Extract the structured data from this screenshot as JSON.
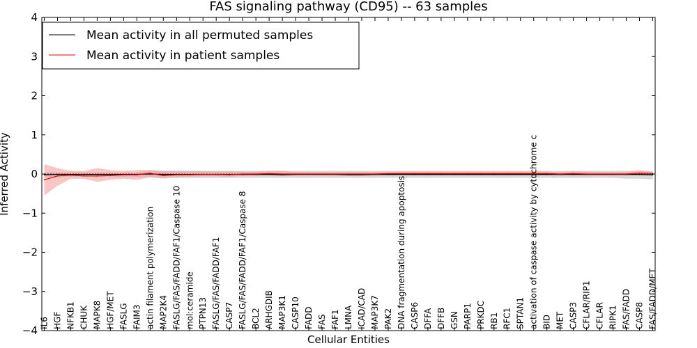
{
  "chart_data": {
    "type": "line",
    "title": "FAS signaling pathway (CD95) -- 63 samples",
    "xlabel": "Cellular Entities",
    "ylabel": "Inferred Activity",
    "ylim": [
      -4,
      4
    ],
    "yticks": [
      -4,
      -3,
      -2,
      -1,
      0,
      1,
      2,
      3,
      4
    ],
    "ytick_labels": [
      "−4",
      "−3",
      "−2",
      "−1",
      "0",
      "1",
      "2",
      "3",
      "4"
    ],
    "legend_position": "top-left",
    "categories": [
      "IL6",
      "HGF",
      "NFKB1",
      "CHUK",
      "MAPK8",
      "HGF/MET",
      "FASLG",
      "FAIM3",
      "actin filament polymerization",
      "MAP2K4",
      "FASLG/FAS/FADD/FAF1/Caspase 10",
      "mol:ceramide",
      "PTPN13",
      "FASLG/FAS/FADD/FAF1",
      "CASP7",
      "FASLG/FAS/FADD/FAF1/Caspase 8",
      "BCL2",
      "ARHGDIB",
      "MAP3K1",
      "CASP10",
      "FADD",
      "FAS",
      "FAF1",
      "LMNA",
      "ICAD/CAD",
      "MAP3K7",
      "PAK2",
      "DNA fragmentation during apoptosis",
      "CASP6",
      "DFFA",
      "DFFB",
      "GSN",
      "PARP1",
      "PRKDC",
      "RB1",
      "RFC1",
      "SPTAN1",
      "activation of caspase activity by cytochrome c",
      "BID",
      "MET",
      "CASP3",
      "CFLAR/RIP1",
      "CFLAR",
      "RIPK1",
      "FAS/FADD",
      "CASP8",
      "FAS/FADD/MET"
    ],
    "series": [
      {
        "name": "Mean activity in all permuted samples",
        "color": "#000000",
        "band_color": "#c8c8c8",
        "values": [
          -0.02,
          -0.01,
          -0.01,
          -0.01,
          -0.01,
          -0.01,
          -0.01,
          -0.01,
          0.0,
          -0.01,
          -0.01,
          -0.01,
          -0.01,
          -0.01,
          -0.01,
          -0.01,
          -0.01,
          -0.01,
          -0.02,
          -0.01,
          -0.01,
          -0.01,
          -0.01,
          -0.02,
          -0.02,
          -0.01,
          -0.01,
          -0.01,
          -0.01,
          -0.01,
          -0.01,
          -0.01,
          -0.01,
          -0.01,
          -0.01,
          -0.01,
          -0.01,
          -0.01,
          -0.01,
          -0.01,
          -0.01,
          -0.01,
          -0.01,
          -0.01,
          -0.01,
          -0.01,
          -0.02
        ],
        "lower": [
          -0.08,
          -0.08,
          -0.08,
          -0.08,
          -0.08,
          -0.08,
          -0.08,
          -0.08,
          -0.09,
          -0.1,
          -0.1,
          -0.1,
          -0.1,
          -0.1,
          -0.1,
          -0.1,
          -0.1,
          -0.1,
          -0.1,
          -0.1,
          -0.1,
          -0.1,
          -0.1,
          -0.1,
          -0.1,
          -0.1,
          -0.1,
          -0.1,
          -0.1,
          -0.1,
          -0.1,
          -0.1,
          -0.1,
          -0.1,
          -0.1,
          -0.1,
          -0.1,
          -0.1,
          -0.1,
          -0.1,
          -0.1,
          -0.1,
          -0.1,
          -0.1,
          -0.12,
          -0.12,
          -0.14
        ],
        "upper": [
          0.05,
          0.05,
          0.05,
          0.05,
          0.05,
          0.05,
          0.05,
          0.05,
          0.1,
          0.08,
          0.08,
          0.08,
          0.08,
          0.08,
          0.08,
          0.08,
          0.08,
          0.08,
          0.08,
          0.08,
          0.08,
          0.08,
          0.08,
          0.08,
          0.08,
          0.08,
          0.08,
          0.08,
          0.08,
          0.08,
          0.08,
          0.08,
          0.08,
          0.08,
          0.08,
          0.08,
          0.08,
          0.08,
          0.08,
          0.08,
          0.08,
          0.08,
          0.08,
          0.08,
          0.08,
          0.08,
          0.08
        ]
      },
      {
        "name": "Mean activity in patient samples",
        "color": "#e00000",
        "band_color": "#f5a0a0",
        "values": [
          -0.15,
          -0.05,
          -0.03,
          -0.05,
          -0.05,
          -0.04,
          -0.02,
          -0.02,
          0.02,
          -0.04,
          -0.02,
          -0.02,
          -0.01,
          -0.01,
          -0.02,
          0.0,
          0.0,
          0.01,
          0.0,
          0.0,
          0.0,
          0.0,
          0.0,
          0.0,
          0.0,
          0.0,
          0.01,
          0.01,
          0.01,
          0.01,
          0.01,
          0.01,
          0.01,
          0.01,
          0.01,
          0.01,
          0.01,
          0.01,
          0.01,
          0.0,
          0.01,
          0.0,
          0.0,
          0.0,
          0.0,
          0.02,
          0.01
        ],
        "lower": [
          -0.55,
          -0.3,
          -0.12,
          -0.12,
          -0.2,
          -0.15,
          -0.12,
          -0.15,
          -0.08,
          -0.12,
          -0.08,
          -0.07,
          -0.06,
          -0.06,
          -0.07,
          -0.05,
          -0.05,
          -0.04,
          -0.05,
          -0.04,
          -0.04,
          -0.04,
          -0.04,
          -0.04,
          -0.04,
          -0.04,
          -0.04,
          -0.04,
          -0.04,
          -0.04,
          -0.04,
          -0.04,
          -0.04,
          -0.04,
          -0.04,
          -0.04,
          -0.04,
          -0.04,
          -0.04,
          -0.04,
          -0.04,
          -0.04,
          -0.04,
          -0.04,
          -0.04,
          -0.04,
          -0.05
        ],
        "upper": [
          0.25,
          0.15,
          0.08,
          0.08,
          0.15,
          0.1,
          0.08,
          0.1,
          0.1,
          0.08,
          0.08,
          0.08,
          0.07,
          0.06,
          0.07,
          0.06,
          0.06,
          0.08,
          0.08,
          0.05,
          0.05,
          0.05,
          0.05,
          0.05,
          0.05,
          0.05,
          0.05,
          0.06,
          0.06,
          0.06,
          0.06,
          0.06,
          0.06,
          0.06,
          0.06,
          0.06,
          0.06,
          0.06,
          0.06,
          0.05,
          0.07,
          0.06,
          0.05,
          0.05,
          0.05,
          0.1,
          0.05
        ]
      }
    ]
  }
}
